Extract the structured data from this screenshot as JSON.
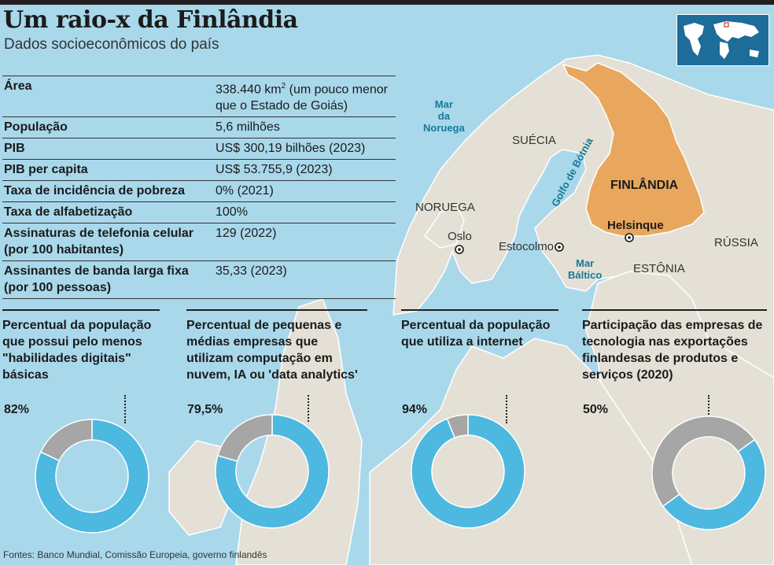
{
  "header": {
    "title": "Um raio-x da Finlândia",
    "subtitle": "Dados socioeconômicos do país"
  },
  "stats": [
    {
      "label": "Área",
      "value": "338.440 km",
      "sup": "2",
      "value_rest": " (um pouco menor que o Estado de Goiás)"
    },
    {
      "label": "População",
      "value": "5,6 milhões"
    },
    {
      "label": "PIB",
      "value": "US$ 300,19 bilhões (2023)"
    },
    {
      "label": "PIB per capita",
      "value": "US$ 53.755,9 (2023)"
    },
    {
      "label": "Taxa de incidência de pobreza",
      "value": "0% (2021)"
    },
    {
      "label": "Taxa de alfabetização",
      "value": "100%"
    },
    {
      "label": "Assinaturas de telefonia celular (por 100 habitantes)",
      "value": "129 (2022)"
    },
    {
      "label": "Assinantes de banda larga fixa (por 100 pessoas)",
      "value": "35,33 (2023)"
    }
  ],
  "map": {
    "countries": [
      "SUÉCIA",
      "NORUEGA",
      "RÚSSIA",
      "ESTÔNIA"
    ],
    "highlight": "FINLÂNDIA",
    "capital": "Helsinque",
    "cities": [
      "Oslo",
      "Estocolmo"
    ],
    "seas": {
      "norway": "Mar\nda\nNoruega",
      "bothnia": "Golfo de Bótnia",
      "baltic": "Mar\nBáltico"
    },
    "colors": {
      "sea": "#a9d8eb",
      "land": "#e4e0d6",
      "finland": "#e9a75e",
      "border": "#ffffff"
    }
  },
  "chart_data": [
    {
      "type": "pie",
      "title": "Percentual da população que possui pelo menos \"habilidades digitais\" básicas",
      "label": "82%",
      "values": [
        82,
        18
      ]
    },
    {
      "type": "pie",
      "title": "Percentual de pequenas e médias empresas que utilizam computação em nuvem, IA ou 'data analytics'",
      "label": "79,5%",
      "values": [
        79.5,
        20.5
      ]
    },
    {
      "type": "pie",
      "title": "Percentual da população que utiliza a internet",
      "label": "94%",
      "values": [
        94,
        6
      ]
    },
    {
      "type": "pie",
      "title": "Participação das empresas de tecnologia nas exportações finlandesas de produtos e serviços (2020)",
      "label": "50%",
      "values": [
        50,
        50
      ]
    }
  ],
  "donut_colors": {
    "value": "#4db8e0",
    "rest": "#a6a6a6"
  },
  "footer": "Fontes: Banco Mundial, Comissão Europeia, governo finlandês"
}
